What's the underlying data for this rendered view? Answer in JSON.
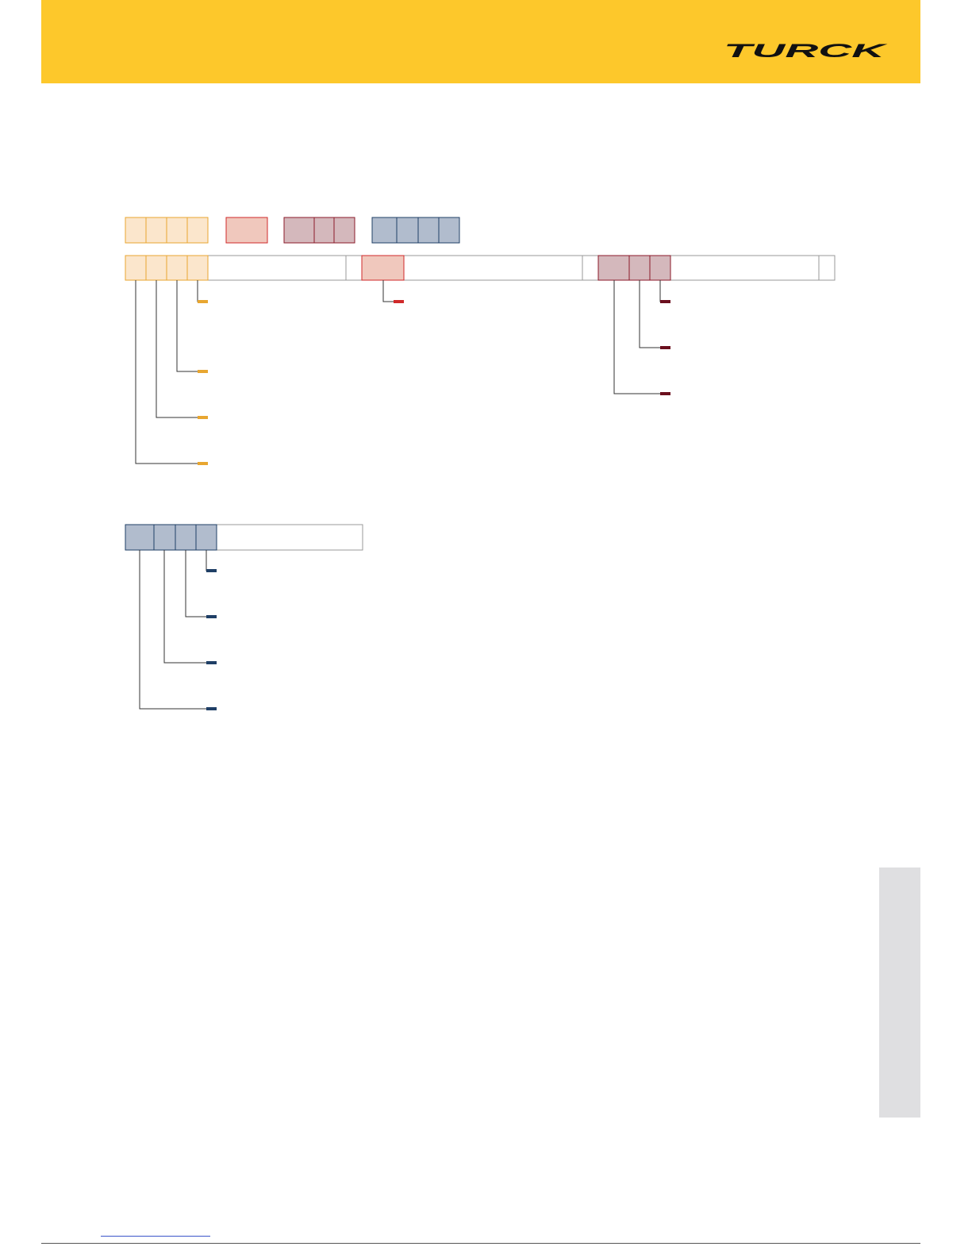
{
  "header": {
    "logo": "TURCK"
  }
}
